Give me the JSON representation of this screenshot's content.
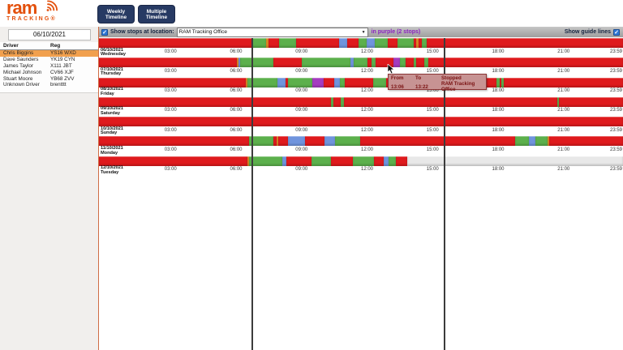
{
  "brand": {
    "name": "ram",
    "sub": "TRACKING®",
    "logo_color": "#e3500c"
  },
  "nav": {
    "buttons": [
      {
        "label": "Weekly Timeline"
      },
      {
        "label": "Multiple Timeline"
      }
    ]
  },
  "sidebar": {
    "date_value": "06/10/2021",
    "table": {
      "headers": [
        "Driver",
        "Reg"
      ],
      "rows": [
        {
          "driver": "Chris Biggins",
          "reg": "YS16 WXD",
          "selected": true
        },
        {
          "driver": "Dave Saunders",
          "reg": "YK19 CYN",
          "selected": false
        },
        {
          "driver": "James Taylor",
          "reg": "X111 JBT",
          "selected": false
        },
        {
          "driver": "Michael Johnson",
          "reg": "CV66 XJF",
          "selected": false
        },
        {
          "driver": "Stuart Moore",
          "reg": "YB68 ZVV",
          "selected": false
        },
        {
          "driver": "Unknown Driver",
          "reg": "brentttt",
          "selected": false
        }
      ]
    }
  },
  "filterbar": {
    "stops_checkbox_checked": true,
    "stops_label": "Show stops at location:",
    "location_selected": "RAM Tracking Office",
    "stops_suffix": "in purple (2 stops)",
    "guide_label": "Show guide lines",
    "guide_checkbox_checked": true
  },
  "tooltip": {
    "header_from": "From",
    "header_to": "To",
    "header_stopped": "Stopped",
    "from": "13:06",
    "to": "13:22",
    "location": "RAM Tracking Office"
  },
  "chart_data": {
    "type": "timeline",
    "time_ticks": [
      "03:00",
      "06:00",
      "09:00",
      "12:00",
      "15:00",
      "18:00",
      "21:00",
      "23:59"
    ],
    "tick_pcts": [
      12.5,
      25,
      37.5,
      50,
      62.5,
      75,
      87.5,
      100
    ],
    "guide_lines_pct": [
      29.1,
      65.8
    ],
    "legend_semantics": {
      "r": "stopped",
      "g": "moving",
      "b": "idling",
      "p": "stop-at-location",
      "o": "brief-stop",
      "x": "no-data"
    },
    "colors": {
      "r": "#df1a1d",
      "g": "#5cb04c",
      "b": "#7094dd",
      "p": "#a53cc0",
      "o": "#df8a26",
      "x": "#e8e8e8"
    },
    "rows": [
      {
        "date": "06/10/2021",
        "day": "Wednesday",
        "segments": [
          [
            0,
            29.1,
            "r"
          ],
          [
            29.1,
            31.9,
            "g"
          ],
          [
            31.9,
            32.3,
            "o"
          ],
          [
            32.3,
            34.4,
            "r"
          ],
          [
            34.4,
            37.6,
            "g"
          ],
          [
            37.6,
            45.8,
            "r"
          ],
          [
            45.8,
            47.4,
            "b"
          ],
          [
            47.4,
            49.5,
            "r"
          ],
          [
            49.5,
            51.1,
            "g"
          ],
          [
            51.1,
            52.6,
            "b"
          ],
          [
            52.6,
            55.1,
            "g"
          ],
          [
            55.1,
            57.0,
            "r"
          ],
          [
            57.0,
            60.1,
            "g"
          ],
          [
            60.1,
            60.6,
            "r"
          ],
          [
            60.6,
            61.0,
            "o"
          ],
          [
            61.0,
            61.6,
            "r"
          ],
          [
            61.6,
            62.5,
            "g"
          ],
          [
            62.5,
            100,
            "r"
          ]
        ]
      },
      {
        "date": "07/10/2021",
        "day": "Thursday",
        "segments": [
          [
            0,
            26.3,
            "r"
          ],
          [
            26.3,
            26.7,
            "o"
          ],
          [
            26.7,
            27.0,
            "b"
          ],
          [
            27.0,
            33.3,
            "g"
          ],
          [
            33.3,
            38.7,
            "r"
          ],
          [
            38.7,
            48.0,
            "g"
          ],
          [
            48.0,
            48.6,
            "b"
          ],
          [
            48.6,
            51.2,
            "g"
          ],
          [
            51.2,
            52.0,
            "r"
          ],
          [
            52.0,
            52.8,
            "g"
          ],
          [
            52.8,
            56.2,
            "r"
          ],
          [
            56.2,
            57.4,
            "p"
          ],
          [
            57.4,
            58.5,
            "g"
          ],
          [
            58.5,
            60.1,
            "r"
          ],
          [
            60.1,
            60.5,
            "g"
          ],
          [
            60.5,
            62.1,
            "r"
          ],
          [
            62.1,
            62.8,
            "g"
          ],
          [
            62.8,
            100,
            "r"
          ]
        ]
      },
      {
        "date": "08/10/2021",
        "day": "Friday",
        "segments": [
          [
            0,
            28.0,
            "r"
          ],
          [
            28.0,
            28.4,
            "o"
          ],
          [
            28.4,
            34.0,
            "g"
          ],
          [
            34.0,
            35.6,
            "b"
          ],
          [
            35.6,
            36.1,
            "r"
          ],
          [
            36.1,
            40.7,
            "g"
          ],
          [
            40.7,
            42.9,
            "p"
          ],
          [
            42.9,
            44.9,
            "r"
          ],
          [
            44.9,
            46.0,
            "b"
          ],
          [
            46.0,
            46.9,
            "g"
          ],
          [
            46.9,
            52.3,
            "r"
          ],
          [
            52.3,
            54.8,
            "g"
          ],
          [
            54.8,
            75.9,
            "r"
          ],
          [
            75.9,
            76.4,
            "g"
          ],
          [
            76.4,
            76.8,
            "r"
          ],
          [
            76.8,
            77.3,
            "g"
          ],
          [
            77.3,
            100,
            "r"
          ]
        ]
      },
      {
        "date": "09/10/2021",
        "day": "Saturday",
        "segments": [
          [
            0,
            44.3,
            "r"
          ],
          [
            44.3,
            44.8,
            "g"
          ],
          [
            44.8,
            46.2,
            "r"
          ],
          [
            46.2,
            46.7,
            "g"
          ],
          [
            46.7,
            87.4,
            "r"
          ],
          [
            87.4,
            87.8,
            "g"
          ],
          [
            87.8,
            100,
            "r"
          ]
        ]
      },
      {
        "date": "10/10/2021",
        "day": "Sunday",
        "segments": [
          [
            0,
            100,
            "r"
          ]
        ]
      },
      {
        "date": "11/10/2021",
        "day": "Monday",
        "segments": [
          [
            0,
            28.6,
            "r"
          ],
          [
            28.6,
            33.3,
            "g"
          ],
          [
            33.3,
            33.9,
            "r"
          ],
          [
            33.9,
            34.2,
            "o"
          ],
          [
            34.2,
            36.1,
            "r"
          ],
          [
            36.1,
            39.3,
            "b"
          ],
          [
            39.3,
            43.0,
            "r"
          ],
          [
            43.0,
            45.1,
            "b"
          ],
          [
            45.1,
            49.8,
            "g"
          ],
          [
            49.8,
            79.4,
            "r"
          ],
          [
            79.4,
            82.0,
            "g"
          ],
          [
            82.0,
            83.3,
            "b"
          ],
          [
            83.3,
            85.6,
            "g"
          ],
          [
            85.6,
            85.9,
            "o"
          ],
          [
            85.9,
            100,
            "r"
          ]
        ]
      },
      {
        "date": "12/10/2021",
        "day": "Tuesday",
        "segments": [
          [
            0,
            28.3,
            "r"
          ],
          [
            28.3,
            28.7,
            "o"
          ],
          [
            28.7,
            35.0,
            "g"
          ],
          [
            35.0,
            35.8,
            "b"
          ],
          [
            35.8,
            40.5,
            "r"
          ],
          [
            40.5,
            44.3,
            "g"
          ],
          [
            44.3,
            48.5,
            "r"
          ],
          [
            48.5,
            52.5,
            "g"
          ],
          [
            52.5,
            54.3,
            "r"
          ],
          [
            54.3,
            55.2,
            "b"
          ],
          [
            55.2,
            56.7,
            "g"
          ],
          [
            56.7,
            58.8,
            "r"
          ],
          [
            58.8,
            100,
            "x"
          ]
        ]
      }
    ]
  }
}
